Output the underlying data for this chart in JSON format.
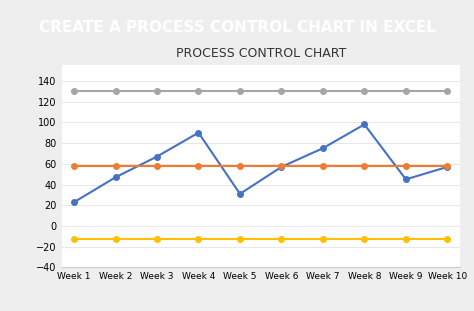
{
  "title": "PROCESS CONTROL CHART",
  "header_text": "CREATE A PROCESS CONTROL CHART IN EXCEL",
  "header_bg": "#2878b8",
  "header_text_color": "#ffffff",
  "categories": [
    "Week 1",
    "Week 2",
    "Week 3",
    "Week 4",
    "Week 5",
    "Week 6",
    "Week 7",
    "Week 8",
    "Week 9",
    "Week 10"
  ],
  "supply": [
    23,
    47,
    67,
    90,
    31,
    57,
    75,
    98,
    45,
    57
  ],
  "control_line": [
    58,
    58,
    58,
    58,
    58,
    58,
    58,
    58,
    58,
    58
  ],
  "upper_limit": [
    130,
    130,
    130,
    130,
    130,
    130,
    130,
    130,
    130,
    130
  ],
  "lower_limit": [
    -13,
    -13,
    -13,
    -13,
    -13,
    -13,
    -13,
    -13,
    -13,
    -13
  ],
  "supply_color": "#4472C4",
  "control_color": "#ED7D31",
  "upper_color": "#A5A5A5",
  "lower_color": "#FFC000",
  "ylim": [
    -40,
    155
  ],
  "yticks": [
    -40,
    -20,
    0,
    20,
    40,
    60,
    80,
    100,
    120,
    140
  ],
  "bg_chart": "#ffffff",
  "bg_outer": "#eeeeee",
  "title_fontsize": 9,
  "legend_fontsize": 7,
  "header_fontsize": 11
}
